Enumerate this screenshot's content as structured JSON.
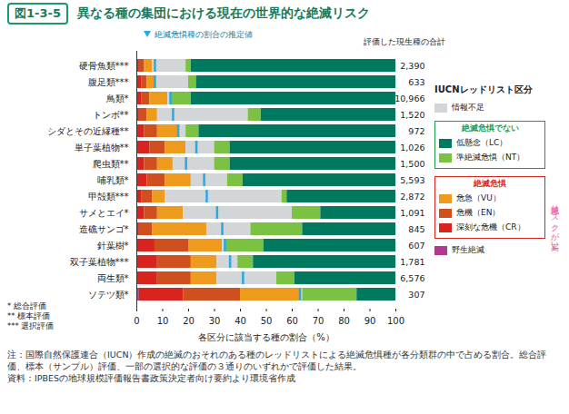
{
  "chart_data": {
    "type": "bar",
    "orientation": "horizontal",
    "stacked": true,
    "figure_number": "図1-3-5",
    "title": "異なる種の集団における現在の世界的な絶滅リスク",
    "xlabel": "各区分に該当する種の割合（%）",
    "xlim": [
      0,
      100
    ],
    "xticks": [
      0,
      10,
      20,
      30,
      40,
      50,
      60,
      70,
      80,
      90,
      100
    ],
    "categories": [
      "硬骨魚類***",
      "腹足類***",
      "鳥類*",
      "トンボ**",
      "シダとその近縁種**",
      "単子葉植物**",
      "爬虫類**",
      "哺乳類*",
      "甲殻類***",
      "サメとエイ*",
      "造礁サンゴ*",
      "針葉樹*",
      "双子葉植物***",
      "両生類*",
      "ソテツ類*"
    ],
    "series": [
      {
        "name": "野生絶滅",
        "color": "#b03a8e",
        "values": [
          0,
          0,
          0,
          0,
          0,
          0,
          0,
          0,
          0,
          0,
          0,
          0,
          0,
          0,
          1
        ]
      },
      {
        "name": "深刻な危機（CR）",
        "color": "#d8231e",
        "values": [
          1,
          2,
          2,
          1,
          3,
          5,
          3,
          4,
          2,
          3,
          1,
          7,
          8,
          8,
          17
        ]
      },
      {
        "name": "危機（EN）",
        "color": "#cf4f1f",
        "values": [
          2,
          2,
          3,
          3,
          5,
          6,
          5,
          7,
          4,
          5,
          5,
          13,
          13,
          13,
          22
        ]
      },
      {
        "name": "危急（VU）",
        "color": "#ee9a1c",
        "values": [
          3,
          3,
          7,
          4,
          8,
          8,
          6,
          10,
          5,
          10,
          21,
          13,
          10,
          10,
          23
        ]
      },
      {
        "name": "情報不足",
        "color": "#d3d6d9",
        "values": [
          13,
          13,
          1,
          35,
          3,
          11,
          16,
          14,
          45,
          42,
          17,
          1,
          8,
          23,
          1
        ]
      },
      {
        "name": "準絶滅危惧（NT）",
        "color": "#7cc242",
        "values": [
          2,
          3,
          8,
          5,
          5,
          6,
          6,
          6,
          2,
          11,
          20,
          15,
          6,
          7,
          21
        ]
      },
      {
        "name": "低懸念（LC）",
        "color": "#00795e",
        "values": [
          79,
          77,
          79,
          52,
          76,
          64,
          64,
          59,
          42,
          29,
          36,
          51,
          55,
          39,
          15
        ]
      }
    ],
    "estimate": {
      "name": "絶滅危惧種の割合の推定値",
      "color": "#29a9e0",
      "values": [
        7,
        7,
        13,
        14,
        16,
        23,
        19,
        26,
        27,
        31,
        33,
        34,
        36,
        41,
        63
      ]
    },
    "totals": {
      "label": "評価した現生種の合計",
      "values": [
        2390,
        633,
        10966,
        1520,
        972,
        1026,
        1500,
        5593,
        2872,
        1091,
        845,
        607,
        1781,
        6576,
        307
      ]
    },
    "legend": "right",
    "legend_title": "IUCNレッドリスト区分",
    "legend_layout": [
      {
        "title": null,
        "items": [
          "情報不足"
        ]
      },
      {
        "title": "絶滅危惧でない",
        "color": "#1a9a4a",
        "items": [
          "低懸念（LC）",
          "準絶滅危惧（NT）"
        ]
      },
      {
        "title": "絶滅危惧",
        "color": "#d8231e",
        "items": [
          "危急（VU）",
          "危機（EN）",
          "深刻な危機（CR）"
        ]
      },
      {
        "title": null,
        "items": [
          "野生絶滅"
        ]
      }
    ],
    "risk_arrow": "絶滅リスクが高い↓",
    "footnotes": [
      "* 総合評価",
      "** 標本評価",
      "*** 選択評価"
    ],
    "notes": [
      "注：国際自然保護連合（IUCN）作成の絶滅のおそれのある種のレッドリストによる絶滅危惧種が各分類群の中で占める割合。総合評価、標本（サンプル）評価、一部の選択的な評価の３通りのいずれかで評価した結果。",
      "資料：IPBESの地球規模評価報告書政策決定者向け要約より環境省作成"
    ]
  }
}
